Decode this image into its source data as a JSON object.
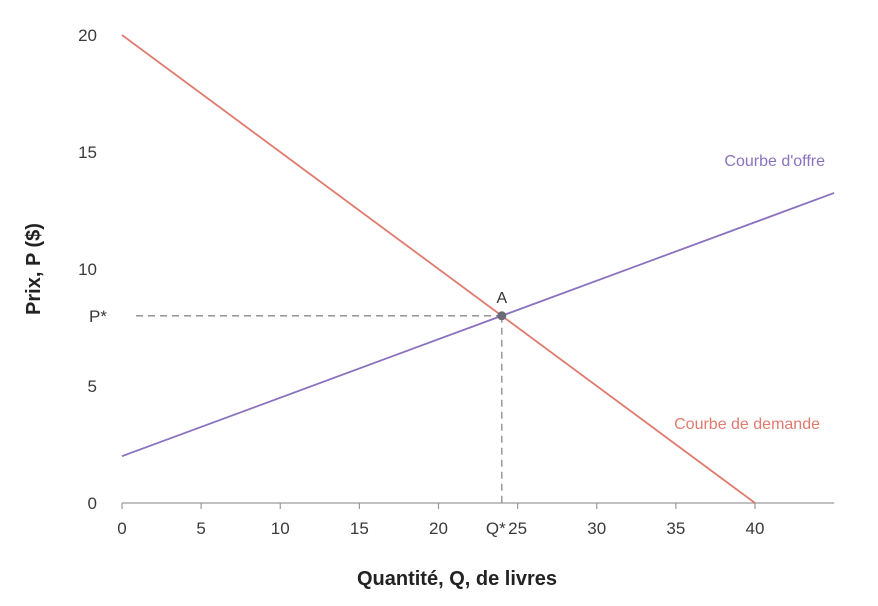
{
  "chart_data": {
    "type": "line",
    "xlabel": "Quantité, Q, de livres",
    "ylabel": "Prix, P ($)",
    "xlim": [
      0,
      45
    ],
    "ylim": [
      0,
      20
    ],
    "x_ticks": [
      0,
      5,
      10,
      15,
      20,
      25,
      30,
      35,
      40
    ],
    "y_ticks": [
      0,
      5,
      10,
      15,
      20
    ],
    "grid": false,
    "series": [
      {
        "name": "Courbe de demande",
        "color": "#e07a6e",
        "x": [
          0,
          40
        ],
        "y": [
          20,
          0
        ]
      },
      {
        "name": "Courbe d'offre",
        "color": "#8a72c0",
        "x": [
          0,
          45
        ],
        "y": [
          2,
          13.25
        ]
      }
    ],
    "equilibrium": {
      "label": "A",
      "x": 24,
      "y": 8,
      "x_label": "Q*",
      "y_label": "P*",
      "color": "#6b6b78"
    }
  }
}
